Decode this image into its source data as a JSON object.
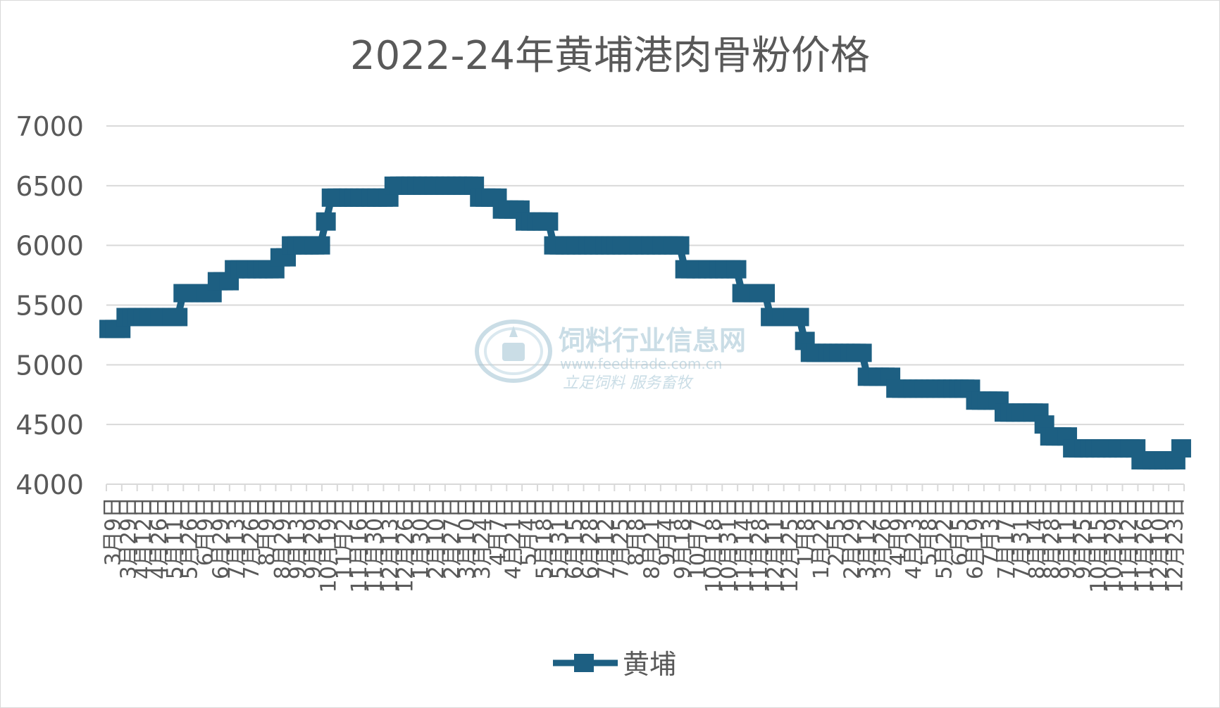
{
  "chart_data": {
    "type": "line",
    "title": "2022-24年黄埔港肉骨粉价格",
    "xlabel": "",
    "ylabel": "",
    "ylim": [
      4000,
      7000
    ],
    "yticks": [
      4000,
      4500,
      5000,
      5500,
      6000,
      6500,
      7000
    ],
    "grid": true,
    "legend": "bottom",
    "series": [
      {
        "name": "黄埔",
        "color": "#1d5f82",
        "values": [
          5300,
          5300,
          5300,
          5400,
          5400,
          5400,
          5400,
          5400,
          5400,
          5400,
          5400,
          5400,
          5400,
          5600,
          5600,
          5600,
          5600,
          5600,
          5600,
          5700,
          5700,
          5700,
          5800,
          5800,
          5800,
          5800,
          5800,
          5800,
          5800,
          5800,
          5900,
          5900,
          6000,
          6000,
          6000,
          6000,
          6000,
          6000,
          6200,
          6400,
          6400,
          6400,
          6400,
          6400,
          6400,
          6400,
          6400,
          6400,
          6400,
          6400,
          6500,
          6500,
          6500,
          6500,
          6500,
          6500,
          6500,
          6500,
          6500,
          6500,
          6500,
          6500,
          6500,
          6500,
          6500,
          6400,
          6400,
          6400,
          6400,
          6300,
          6300,
          6300,
          6300,
          6200,
          6200,
          6200,
          6200,
          6200,
          6000,
          6000,
          6000,
          6000,
          6000,
          6000,
          6000,
          6000,
          6000,
          6000,
          6000,
          6000,
          6000,
          6000,
          6000,
          6000,
          6000,
          6000,
          6000,
          6000,
          6000,
          6000,
          6000,
          5800,
          5800,
          5800,
          5800,
          5800,
          5800,
          5800,
          5800,
          5800,
          5800,
          5600,
          5600,
          5600,
          5600,
          5600,
          5400,
          5400,
          5400,
          5400,
          5400,
          5400,
          5200,
          5100,
          5100,
          5100,
          5100,
          5100,
          5100,
          5100,
          5100,
          5100,
          5100,
          4900,
          4900,
          4900,
          4900,
          4900,
          4800,
          4800,
          4800,
          4800,
          4800,
          4800,
          4800,
          4800,
          4800,
          4800,
          4800,
          4800,
          4800,
          4800,
          4700,
          4700,
          4700,
          4700,
          4700,
          4600,
          4600,
          4600,
          4600,
          4600,
          4600,
          4600,
          4500,
          4400,
          4400,
          4400,
          4400,
          4300,
          4300,
          4300,
          4300,
          4300,
          4300,
          4300,
          4300,
          4300,
          4300,
          4300,
          4300,
          4200,
          4200,
          4200,
          4200,
          4200,
          4200,
          4200,
          4300
        ]
      }
    ],
    "x_labels": [
      "3月9日",
      "3月29日",
      "4月12日",
      "4月26日",
      "5月11日",
      "5月26日",
      "6月9日",
      "6月29日",
      "7月13日",
      "7月26日",
      "8月9日",
      "8月29日",
      "9月13日",
      "9月29日",
      "10月19日",
      "11月2日",
      "11月16日",
      "11月30日",
      "12月13日",
      "12月26日",
      "1月30日",
      "2月10日",
      "2月27日",
      "3月10日",
      "3月24日",
      "4月7日",
      "4月21日",
      "5月4日",
      "5月18日",
      "5月31日",
      "6月15日",
      "6月28日",
      "7月12日",
      "7月25日",
      "8月8日",
      "8月21日",
      "9月4日",
      "9月18日",
      "10月7日",
      "10月18日",
      "10月31日",
      "11月14日",
      "11月28日",
      "12月11日",
      "12月25日",
      "1月8日",
      "1月22日",
      "2月5日",
      "2月29日",
      "3月12日",
      "3月26日",
      "4月9日",
      "4月23日",
      "5月8日",
      "5月22日",
      "6月5日",
      "6月19日",
      "7月3日",
      "7月17日",
      "7月31日",
      "8月14日",
      "8月28日",
      "9月11日",
      "9月25日",
      "10月15日",
      "10月29日",
      "11月12日",
      "11月26日",
      "12月10日",
      "12月23日"
    ]
  },
  "watermark": {
    "site_name": "饲料行业信息网",
    "url": "www.feedtrade.com.cn",
    "slogan": "立足饲料  服务畜牧"
  },
  "colors": {
    "line": "#1d5f82",
    "grid": "#d9d9d9",
    "axis_text": "#595959",
    "title": "#595959",
    "watermark": "#9fc2d3"
  }
}
